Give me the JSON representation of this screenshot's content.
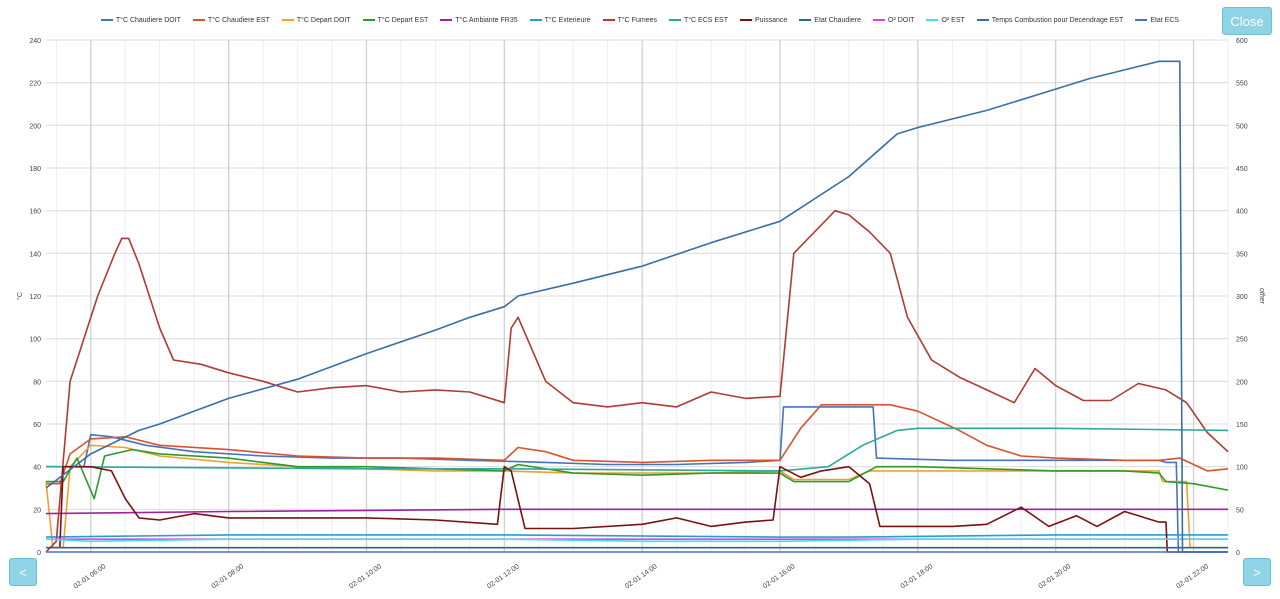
{
  "buttons": {
    "close_label": "Close",
    "prev_label": "<",
    "next_label": ">"
  },
  "chart_data": {
    "type": "line",
    "y_left": {
      "label": "°C",
      "ylim": [
        0,
        240
      ],
      "ticks": [
        0,
        20,
        40,
        60,
        80,
        100,
        120,
        140,
        160,
        180,
        200,
        220,
        240
      ]
    },
    "y_right": {
      "label": "other",
      "ylim": [
        0,
        600
      ],
      "ticks": [
        0,
        50,
        100,
        150,
        200,
        250,
        300,
        350,
        400,
        450,
        500,
        550,
        600
      ]
    },
    "x_ticks": [
      "02-01 06:00",
      "02-01 08:00",
      "02-01 10:00",
      "02-01 12:00",
      "02-01 14:00",
      "02-01 16:00",
      "02-01 18:00",
      "02-01 20:00",
      "02-01 22:00"
    ],
    "x_tick_hours": [
      6,
      8,
      10,
      12,
      14,
      16,
      18,
      20,
      22
    ],
    "xlim_hours": [
      5.35,
      22.5
    ],
    "grid": true,
    "legend_position": "top",
    "series": [
      {
        "name": "T°C Chaudiere DOIT",
        "color": "#4572c4",
        "axis": "left",
        "points": [
          [
            5.35,
            40
          ],
          [
            5.9,
            40
          ],
          [
            6.0,
            55
          ],
          [
            6.3,
            54
          ],
          [
            6.8,
            50
          ],
          [
            7.5,
            47
          ],
          [
            8.5,
            45
          ],
          [
            9.5,
            44
          ],
          [
            10.5,
            44
          ],
          [
            11.5,
            43
          ],
          [
            12.6,
            42
          ],
          [
            13.5,
            41
          ],
          [
            14.5,
            41
          ],
          [
            15.5,
            42
          ],
          [
            16.0,
            43
          ],
          [
            16.05,
            68
          ],
          [
            17.35,
            68
          ],
          [
            17.4,
            44
          ],
          [
            18.5,
            43
          ],
          [
            19.5,
            43
          ],
          [
            20.5,
            43
          ],
          [
            21.5,
            43
          ],
          [
            21.6,
            42
          ],
          [
            21.75,
            42
          ],
          [
            21.78,
            0
          ],
          [
            22.5,
            0
          ]
        ]
      },
      {
        "name": "T°C Chaudiere EST",
        "color": "#d9532c",
        "axis": "left",
        "points": [
          [
            5.35,
            32
          ],
          [
            5.55,
            32
          ],
          [
            5.7,
            46
          ],
          [
            6.0,
            53
          ],
          [
            6.5,
            54
          ],
          [
            7.0,
            50
          ],
          [
            8.0,
            48
          ],
          [
            9.0,
            45
          ],
          [
            10.0,
            44
          ],
          [
            11.0,
            44
          ],
          [
            12.0,
            43
          ],
          [
            12.2,
            49
          ],
          [
            12.6,
            47
          ],
          [
            13.0,
            43
          ],
          [
            14.0,
            42
          ],
          [
            15.0,
            43
          ],
          [
            16.0,
            43
          ],
          [
            16.3,
            58
          ],
          [
            16.6,
            69
          ],
          [
            17.0,
            69
          ],
          [
            17.6,
            69
          ],
          [
            18.0,
            66
          ],
          [
            18.6,
            57
          ],
          [
            19.0,
            50
          ],
          [
            19.5,
            45
          ],
          [
            20.0,
            44
          ],
          [
            21.0,
            43
          ],
          [
            21.5,
            43
          ],
          [
            21.8,
            44
          ],
          [
            22.2,
            38
          ],
          [
            22.5,
            39
          ]
        ]
      },
      {
        "name": "T°C Depart DOIT",
        "color": "#f0a030",
        "axis": "left",
        "points": [
          [
            5.35,
            33
          ],
          [
            5.45,
            2
          ],
          [
            5.6,
            2
          ],
          [
            5.7,
            40
          ],
          [
            6.0,
            50
          ],
          [
            6.5,
            49
          ],
          [
            7.0,
            45
          ],
          [
            8.0,
            42
          ],
          [
            9.0,
            40
          ],
          [
            10.0,
            39
          ],
          [
            11.0,
            38
          ],
          [
            12.0,
            38
          ],
          [
            13.0,
            37
          ],
          [
            14.0,
            37
          ],
          [
            15.0,
            37
          ],
          [
            16.0,
            38
          ],
          [
            16.2,
            34
          ],
          [
            17.0,
            34
          ],
          [
            17.3,
            38
          ],
          [
            18.0,
            38
          ],
          [
            19.0,
            38
          ],
          [
            20.0,
            38
          ],
          [
            21.0,
            38
          ],
          [
            21.5,
            38
          ],
          [
            21.55,
            33
          ],
          [
            21.9,
            33
          ],
          [
            21.95,
            2
          ],
          [
            22.5,
            2
          ]
        ]
      },
      {
        "name": "T°C Depart EST",
        "color": "#2e9a2e",
        "axis": "left",
        "points": [
          [
            5.35,
            33
          ],
          [
            5.6,
            33
          ],
          [
            5.8,
            44
          ],
          [
            6.05,
            25
          ],
          [
            6.2,
            45
          ],
          [
            6.6,
            48
          ],
          [
            7.0,
            46
          ],
          [
            8.0,
            44
          ],
          [
            9.0,
            40
          ],
          [
            10.0,
            40
          ],
          [
            11.0,
            39
          ],
          [
            12.0,
            38
          ],
          [
            12.2,
            41
          ],
          [
            13.0,
            37
          ],
          [
            14.0,
            36
          ],
          [
            15.0,
            37
          ],
          [
            16.0,
            37
          ],
          [
            16.2,
            33
          ],
          [
            17.0,
            33
          ],
          [
            17.4,
            40
          ],
          [
            18.0,
            40
          ],
          [
            19.0,
            39
          ],
          [
            20.0,
            38
          ],
          [
            21.0,
            38
          ],
          [
            21.5,
            37
          ],
          [
            21.6,
            33
          ],
          [
            22.0,
            32
          ],
          [
            22.5,
            29
          ]
        ]
      },
      {
        "name": "T°C Ambiante FR35",
        "color": "#a0209f",
        "axis": "left",
        "points": [
          [
            5.35,
            18
          ],
          [
            8.0,
            19
          ],
          [
            12.0,
            20
          ],
          [
            16.0,
            20
          ],
          [
            20.0,
            20
          ],
          [
            22.5,
            20
          ]
        ]
      },
      {
        "name": "T°C Exterieure",
        "color": "#23a0d0",
        "axis": "left",
        "points": [
          [
            5.35,
            7
          ],
          [
            8.0,
            8
          ],
          [
            12.0,
            8
          ],
          [
            16.0,
            7
          ],
          [
            17.0,
            7
          ],
          [
            20.0,
            8
          ],
          [
            22.5,
            8
          ]
        ]
      },
      {
        "name": "T°C Fumees",
        "color": "#b03a34",
        "axis": "left",
        "points": [
          [
            5.35,
            0
          ],
          [
            5.5,
            5
          ],
          [
            5.7,
            80
          ],
          [
            5.85,
            95
          ],
          [
            6.1,
            120
          ],
          [
            6.35,
            140
          ],
          [
            6.45,
            147
          ],
          [
            6.55,
            147
          ],
          [
            6.7,
            135
          ],
          [
            7.0,
            105
          ],
          [
            7.2,
            90
          ],
          [
            7.6,
            88
          ],
          [
            8.0,
            84
          ],
          [
            8.5,
            80
          ],
          [
            9.0,
            75
          ],
          [
            9.5,
            77
          ],
          [
            10.0,
            78
          ],
          [
            10.5,
            75
          ],
          [
            11.0,
            76
          ],
          [
            11.5,
            75
          ],
          [
            12.0,
            70
          ],
          [
            12.1,
            105
          ],
          [
            12.2,
            110
          ],
          [
            12.4,
            95
          ],
          [
            12.6,
            80
          ],
          [
            13.0,
            70
          ],
          [
            13.5,
            68
          ],
          [
            14.0,
            70
          ],
          [
            14.5,
            68
          ],
          [
            15.0,
            75
          ],
          [
            15.5,
            72
          ],
          [
            16.0,
            73
          ],
          [
            16.2,
            140
          ],
          [
            16.5,
            150
          ],
          [
            16.8,
            160
          ],
          [
            17.0,
            158
          ],
          [
            17.3,
            150
          ],
          [
            17.6,
            140
          ],
          [
            17.85,
            110
          ],
          [
            18.2,
            90
          ],
          [
            18.6,
            82
          ],
          [
            19.0,
            76
          ],
          [
            19.4,
            70
          ],
          [
            19.7,
            86
          ],
          [
            20.0,
            78
          ],
          [
            20.4,
            71
          ],
          [
            20.8,
            71
          ],
          [
            21.2,
            79
          ],
          [
            21.6,
            76
          ],
          [
            21.9,
            70
          ],
          [
            22.2,
            56
          ],
          [
            22.5,
            47
          ]
        ]
      },
      {
        "name": "T°C ECS EST",
        "color": "#2aaa9a",
        "axis": "left",
        "points": [
          [
            5.35,
            40
          ],
          [
            10.0,
            39
          ],
          [
            12.0,
            39
          ],
          [
            16.0,
            38
          ],
          [
            16.7,
            40
          ],
          [
            17.2,
            50
          ],
          [
            17.7,
            57
          ],
          [
            18.0,
            58
          ],
          [
            20.0,
            58
          ],
          [
            22.5,
            57
          ]
        ]
      },
      {
        "name": "Puissance",
        "color": "#7a1010",
        "axis": "left",
        "points": [
          [
            5.35,
            2
          ],
          [
            5.55,
            2
          ],
          [
            5.6,
            40
          ],
          [
            6.0,
            40
          ],
          [
            6.3,
            38
          ],
          [
            6.5,
            25
          ],
          [
            6.7,
            16
          ],
          [
            7.0,
            15
          ],
          [
            7.5,
            18
          ],
          [
            8.0,
            16
          ],
          [
            9.0,
            16
          ],
          [
            10.0,
            16
          ],
          [
            11.0,
            15
          ],
          [
            11.9,
            13
          ],
          [
            12.0,
            40
          ],
          [
            12.1,
            38
          ],
          [
            12.3,
            11
          ],
          [
            13.0,
            11
          ],
          [
            14.0,
            13
          ],
          [
            14.5,
            16
          ],
          [
            15.0,
            12
          ],
          [
            15.5,
            14
          ],
          [
            15.9,
            15
          ],
          [
            16.0,
            40
          ],
          [
            16.3,
            35
          ],
          [
            16.6,
            38
          ],
          [
            17.0,
            40
          ],
          [
            17.3,
            32
          ],
          [
            17.45,
            12
          ],
          [
            18.0,
            12
          ],
          [
            18.5,
            12
          ],
          [
            19.0,
            13
          ],
          [
            19.5,
            21
          ],
          [
            19.9,
            12
          ],
          [
            20.3,
            17
          ],
          [
            20.6,
            12
          ],
          [
            21.0,
            19
          ],
          [
            21.5,
            14
          ],
          [
            21.6,
            14
          ],
          [
            21.62,
            0
          ],
          [
            22.5,
            0
          ]
        ]
      },
      {
        "name": "Etat Chaudiere",
        "color": "#1f6f7f",
        "axis": "left",
        "points": [
          [
            5.35,
            2
          ],
          [
            22.5,
            2
          ]
        ]
      },
      {
        "name": "O² DOIT",
        "color": "#e040e0",
        "axis": "left",
        "points": [
          [
            5.35,
            6
          ],
          [
            22.5,
            6
          ]
        ]
      },
      {
        "name": "O² EST",
        "color": "#40e0f0",
        "axis": "left",
        "points": [
          [
            5.35,
            6
          ],
          [
            6.0,
            5
          ],
          [
            8.0,
            6
          ],
          [
            10.0,
            6
          ],
          [
            12.0,
            6
          ],
          [
            14.0,
            5
          ],
          [
            16.0,
            5
          ],
          [
            18.0,
            6
          ],
          [
            20.0,
            6
          ],
          [
            22.5,
            6
          ]
        ]
      },
      {
        "name": "Temps Combustion pour Decendrage EST",
        "color": "#3a6ea5",
        "axis": "left",
        "points": [
          [
            5.35,
            30
          ],
          [
            6.0,
            46
          ],
          [
            6.7,
            57
          ],
          [
            7.0,
            60
          ],
          [
            8.0,
            72
          ],
          [
            9.0,
            81
          ],
          [
            10.0,
            93
          ],
          [
            11.0,
            104
          ],
          [
            11.5,
            110
          ],
          [
            12.0,
            115
          ],
          [
            12.2,
            120
          ],
          [
            13.0,
            126
          ],
          [
            14.0,
            134
          ],
          [
            15.0,
            145
          ],
          [
            16.0,
            155
          ],
          [
            17.0,
            176
          ],
          [
            17.7,
            196
          ],
          [
            18.0,
            199
          ],
          [
            19.0,
            207
          ],
          [
            19.7,
            214
          ],
          [
            20.5,
            222
          ],
          [
            21.0,
            226
          ],
          [
            21.5,
            230
          ],
          [
            21.8,
            230
          ],
          [
            21.84,
            0
          ],
          [
            22.5,
            0
          ]
        ]
      },
      {
        "name": "Etat ECS",
        "color": "#4a6fc8",
        "axis": "left",
        "points": [
          [
            5.35,
            0
          ],
          [
            22.5,
            0
          ]
        ]
      }
    ]
  }
}
